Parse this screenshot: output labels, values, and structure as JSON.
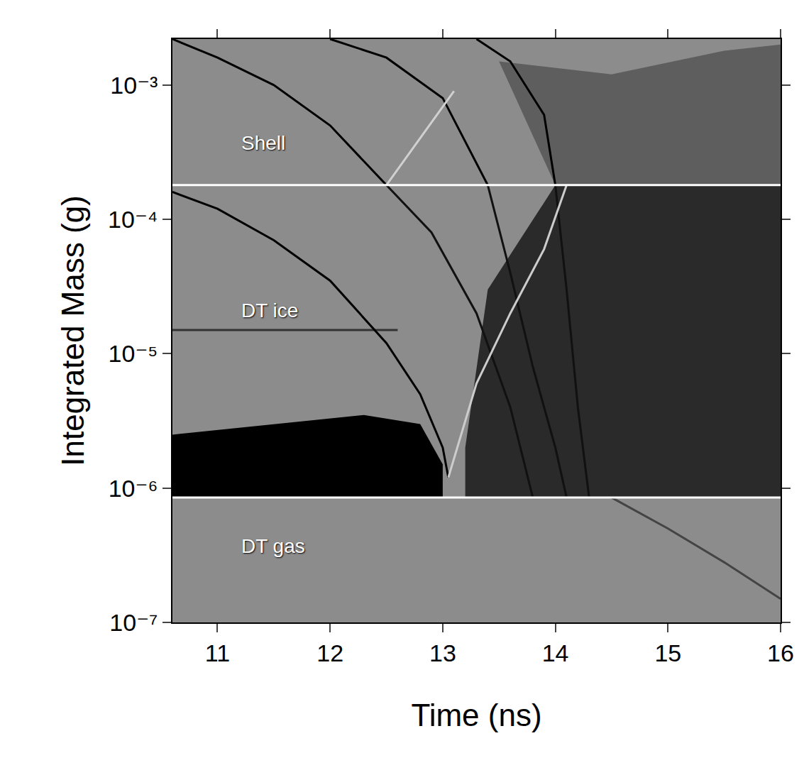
{
  "chart_data": {
    "type": "line",
    "xlabel": "Time (ns)",
    "ylabel": "Integrated Mass (g)",
    "log": "y",
    "grid": false,
    "xlim": [
      10.6,
      16
    ],
    "xticks": [
      11,
      12,
      13,
      14,
      15,
      16
    ],
    "ylim": [
      1e-07,
      0.0022
    ],
    "yticks": [
      {
        "value": 1e-07,
        "label": "10⁻⁷"
      },
      {
        "value": 1e-06,
        "label": "10⁻⁶"
      },
      {
        "value": 1e-05,
        "label": "10⁻⁵"
      },
      {
        "value": 0.0001,
        "label": "10⁻⁴"
      },
      {
        "value": 0.001,
        "label": "10⁻³"
      }
    ],
    "annotations": [
      {
        "text": "Shell",
        "x": 11.2,
        "y": 0.00037
      },
      {
        "text": "DT ice",
        "x": 11.2,
        "y": 2.1e-05
      },
      {
        "text": "DT gas",
        "x": 11.2,
        "y": 3.7e-07
      }
    ],
    "series": [
      {
        "type": "area",
        "color": "#5e5e5e",
        "x": [
          13.5,
          14.5,
          15.5,
          16,
          16,
          14.0
        ],
        "values": [
          0.0015,
          0.0012,
          0.0018,
          0.002,
          0.00018,
          0.00018
        ]
      },
      {
        "type": "area",
        "color": "#2a2a2a",
        "x": [
          13.2,
          13.4,
          14.0,
          16,
          16,
          13.2
        ],
        "values": [
          2e-06,
          3e-05,
          0.00018,
          0.00018,
          8.5e-07,
          8.5e-07
        ]
      },
      {
        "type": "area",
        "color": "#000000",
        "x": [
          10.6,
          11.5,
          12.3,
          12.8,
          13.0,
          13.0,
          10.6
        ],
        "values": [
          2.5e-06,
          3e-06,
          3.5e-06,
          3e-06,
          1.5e-06,
          8.5e-07,
          8.5e-07
        ]
      },
      {
        "type": "line",
        "color": "#333333",
        "x": [
          10.6,
          12.6
        ],
        "values": [
          1.5e-05,
          1.5e-05
        ]
      },
      {
        "type": "line",
        "color": "#000000",
        "x": [
          10.6,
          11,
          11.5,
          12,
          12.5
        ],
        "values": [
          0.0022,
          0.0016,
          0.001,
          0.0005,
          0.00018
        ]
      },
      {
        "type": "line",
        "color": "#000000",
        "x": [
          10.6,
          11,
          11.5,
          12,
          12.5,
          12.8,
          13.0,
          13.05
        ],
        "values": [
          0.00016,
          0.00012,
          7e-05,
          3.5e-05,
          1.2e-05,
          5e-06,
          2e-06,
          1.2e-06
        ]
      },
      {
        "type": "line",
        "color": "#111111",
        "x": [
          12.5,
          12.9,
          13.3,
          13.6,
          13.8
        ],
        "values": [
          0.00018,
          8e-05,
          2e-05,
          4e-06,
          8.5e-07
        ]
      },
      {
        "type": "line",
        "color": "#000000",
        "x": [
          12.0,
          12.5,
          13.0,
          13.4
        ],
        "values": [
          0.0022,
          0.0016,
          0.0008,
          0.00018
        ]
      },
      {
        "type": "line",
        "color": "#111111",
        "x": [
          13.4,
          13.6,
          13.8,
          14.0,
          14.1
        ],
        "values": [
          0.00018,
          4e-05,
          8e-06,
          2e-06,
          8.5e-07
        ]
      },
      {
        "type": "line",
        "color": "#000000",
        "x": [
          13.3,
          13.6,
          13.9,
          14.0
        ],
        "values": [
          0.0022,
          0.0015,
          0.0006,
          0.00018
        ]
      },
      {
        "type": "line",
        "color": "#111111",
        "x": [
          14.0,
          14.1,
          14.2,
          14.3
        ],
        "values": [
          0.00018,
          3e-05,
          4e-06,
          8.5e-07
        ]
      },
      {
        "type": "line",
        "color": "#cccccc",
        "x": [
          13.05,
          13.3,
          13.6,
          13.9,
          14.1
        ],
        "values": [
          1.2e-06,
          6e-06,
          2e-05,
          6e-05,
          0.00018
        ]
      },
      {
        "type": "line",
        "color": "#d0d0d0",
        "x": [
          12.5,
          12.8,
          13.1
        ],
        "values": [
          0.00018,
          0.0004,
          0.0009
        ]
      },
      {
        "type": "line",
        "color": "#444444",
        "x": [
          14.5,
          15,
          15.5,
          16
        ],
        "values": [
          8.5e-07,
          5e-07,
          2.8e-07,
          1.5e-07
        ]
      },
      {
        "type": "line",
        "color": "#ffffff",
        "x": [
          10.6,
          16
        ],
        "values": [
          0.00018,
          0.00018
        ]
      },
      {
        "type": "line",
        "color": "#ffffff",
        "x": [
          10.6,
          16
        ],
        "values": [
          8.5e-07,
          8.5e-07
        ]
      }
    ]
  }
}
